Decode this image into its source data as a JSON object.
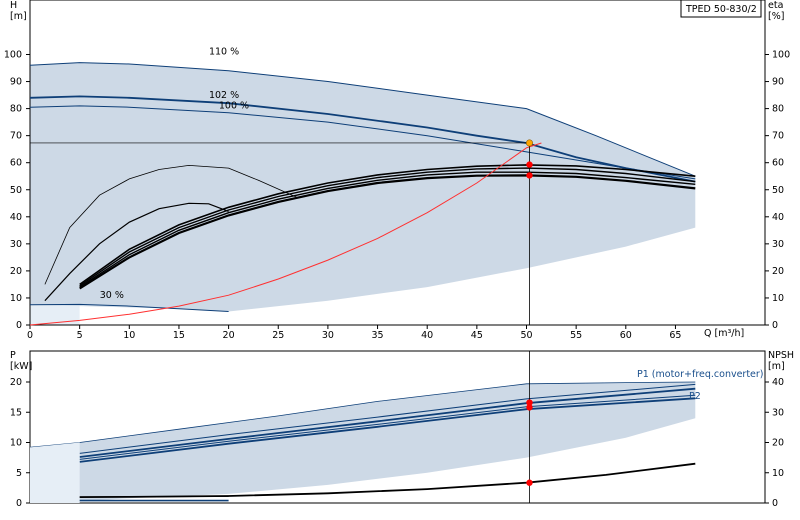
{
  "colors": {
    "envelope": "#cdd9e6",
    "envelope_light": "#e6eef6",
    "curve_blue": "#0e3f78",
    "duty_point": "#ff0000",
    "system_curve": "#ff3030",
    "max_point": "#ffa500"
  },
  "chart_data": [
    {
      "type": "line",
      "title": "TPED 50-830/2",
      "xlabel": "Q [m³/h]",
      "ylabel": "H [m]",
      "y2label": "eta [%]",
      "xlim": [
        0,
        70
      ],
      "ylim": [
        0,
        110
      ],
      "y2lim": [
        0,
        110
      ],
      "xticks": [
        0,
        5,
        10,
        15,
        20,
        25,
        30,
        35,
        40,
        45,
        50,
        55,
        60,
        65
      ],
      "yticks": [
        0,
        10,
        20,
        30,
        40,
        50,
        60,
        70,
        80,
        90,
        100
      ],
      "grid": false,
      "curve_labels": [
        {
          "text": "110 %",
          "x": 15,
          "y": 100
        },
        {
          "text": "102 %",
          "x": 15,
          "y": 84
        },
        {
          "text": "100 %",
          "x": 16,
          "y": 80
        },
        {
          "text": "30 %",
          "x": 4,
          "y": 10
        }
      ],
      "series": [
        {
          "role": "head-110",
          "x": [
            0,
            5,
            10,
            20,
            30,
            40,
            50,
            57,
            67
          ],
          "y": [
            96,
            97,
            96.5,
            94,
            90,
            85,
            80,
            70,
            55
          ]
        },
        {
          "role": "head-102",
          "x": [
            0,
            5,
            10,
            20,
            30,
            40,
            45,
            50,
            55,
            60,
            67
          ],
          "y": [
            84,
            84.5,
            84,
            82,
            78,
            73,
            70,
            67.3,
            62,
            58,
            53
          ]
        },
        {
          "role": "head-100",
          "x": [
            0,
            5,
            10,
            20,
            30,
            40,
            50,
            60,
            67
          ],
          "y": [
            80.5,
            81,
            80.5,
            78.5,
            75,
            70,
            64,
            58,
            54
          ]
        },
        {
          "role": "head-30",
          "x": [
            0,
            5,
            10,
            15,
            20
          ],
          "y": [
            7.5,
            7.6,
            7,
            6,
            5
          ]
        },
        {
          "role": "eta-min",
          "x": [
            1.5,
            4,
            7,
            10,
            13,
            16,
            20,
            23,
            27
          ],
          "y": [
            15,
            36,
            48,
            54,
            57.5,
            59,
            58,
            53.5,
            47
          ]
        },
        {
          "role": "eta-max",
          "x": [
            1.5,
            4,
            7,
            10,
            13,
            16,
            18,
            20
          ],
          "y": [
            9,
            19,
            30,
            38,
            43,
            45,
            44.8,
            42
          ]
        },
        {
          "role": "eta-1",
          "x": [
            5,
            10,
            15,
            20,
            25,
            30,
            35,
            40,
            45,
            50,
            55,
            60,
            67
          ],
          "y": [
            15,
            28,
            37,
            43.5,
            48.5,
            52.5,
            55.5,
            57.5,
            58.7,
            59.2,
            58.8,
            57.5,
            55
          ]
        },
        {
          "role": "eta-2",
          "x": [
            5,
            10,
            15,
            20,
            25,
            30,
            35,
            40,
            45,
            50,
            55,
            60,
            67
          ],
          "y": [
            14.5,
            27,
            36,
            42.5,
            47.5,
            51.5,
            54.5,
            56.5,
            57.7,
            58,
            57.5,
            56,
            53
          ]
        },
        {
          "role": "eta-3",
          "x": [
            5,
            10,
            15,
            20,
            25,
            30,
            35,
            40,
            45,
            50,
            55,
            60,
            67
          ],
          "y": [
            14,
            26,
            35,
            41.5,
            46.5,
            50.5,
            53.5,
            55.5,
            56.5,
            56.5,
            56,
            54.5,
            52
          ]
        },
        {
          "role": "eta-4",
          "x": [
            5,
            10,
            15,
            20,
            25,
            30,
            35,
            40,
            45,
            50,
            55,
            60,
            67
          ],
          "y": [
            13.5,
            25,
            34,
            40.5,
            45.5,
            49.5,
            52.5,
            54.3,
            55.2,
            55.3,
            54.8,
            53.3,
            50.5
          ]
        },
        {
          "role": "system-curve",
          "x": [
            0,
            5,
            10,
            15,
            20,
            25,
            30,
            35,
            40,
            45,
            50,
            51.5
          ],
          "y": [
            0,
            1.7,
            4,
            7,
            11,
            17,
            24,
            32,
            41.5,
            52.5,
            65.5,
            67.3
          ]
        }
      ],
      "duty_points": [
        {
          "x": 50.3,
          "y": 67.3,
          "kind": "max"
        },
        {
          "x": 50.3,
          "y": 59.3,
          "kind": "duty"
        },
        {
          "x": 50.3,
          "y": 55.3,
          "kind": "duty"
        }
      ]
    },
    {
      "type": "line",
      "xlabel": "",
      "ylabel": "P [kW]",
      "y2label": "NPSH [m]",
      "xlim": [
        0,
        70
      ],
      "ylim": [
        0,
        22
      ],
      "y2lim": [
        0,
        44
      ],
      "yticks": [
        0,
        5,
        10,
        15,
        20
      ],
      "y2ticks": [
        0,
        10,
        20,
        30,
        40
      ],
      "grid": false,
      "series_labels": [
        {
          "text": "P1 (motor+freq.converter)",
          "x": 61,
          "y": 21.3
        },
        {
          "text": "P2",
          "x": 67,
          "y": 17.7
        }
      ],
      "series": [
        {
          "role": "p1-upper",
          "x": [
            5,
            20,
            35,
            50,
            67
          ],
          "y": [
            8.2,
            11.3,
            14.2,
            17.2,
            19.6
          ]
        },
        {
          "role": "p1-lower",
          "x": [
            5,
            20,
            35,
            50,
            67
          ],
          "y": [
            7.6,
            10.6,
            13.5,
            16.5,
            18.9
          ]
        },
        {
          "role": "p2-upper",
          "x": [
            5,
            20,
            35,
            50,
            67
          ],
          "y": [
            7.2,
            10.2,
            13,
            15.9,
            17.8
          ]
        },
        {
          "role": "p2-lower",
          "x": [
            5,
            20,
            35,
            50,
            67
          ],
          "y": [
            6.8,
            9.8,
            12.6,
            15.5,
            17.3
          ]
        },
        {
          "role": "p-low",
          "x": [
            0,
            20
          ],
          "y": [
            0.4,
            0.4
          ]
        },
        {
          "role": "npsh",
          "x": [
            0,
            10,
            20,
            30,
            40,
            50,
            58,
            67
          ],
          "y2": [
            1.9,
            2,
            2.3,
            3.2,
            4.6,
            6.7,
            9.3,
            13
          ]
        }
      ],
      "duty_points": [
        {
          "x": 50.3,
          "y": 16.6
        },
        {
          "x": 50.3,
          "y": 15.8
        },
        {
          "x": 50.3,
          "y2": 6.7
        }
      ]
    }
  ]
}
